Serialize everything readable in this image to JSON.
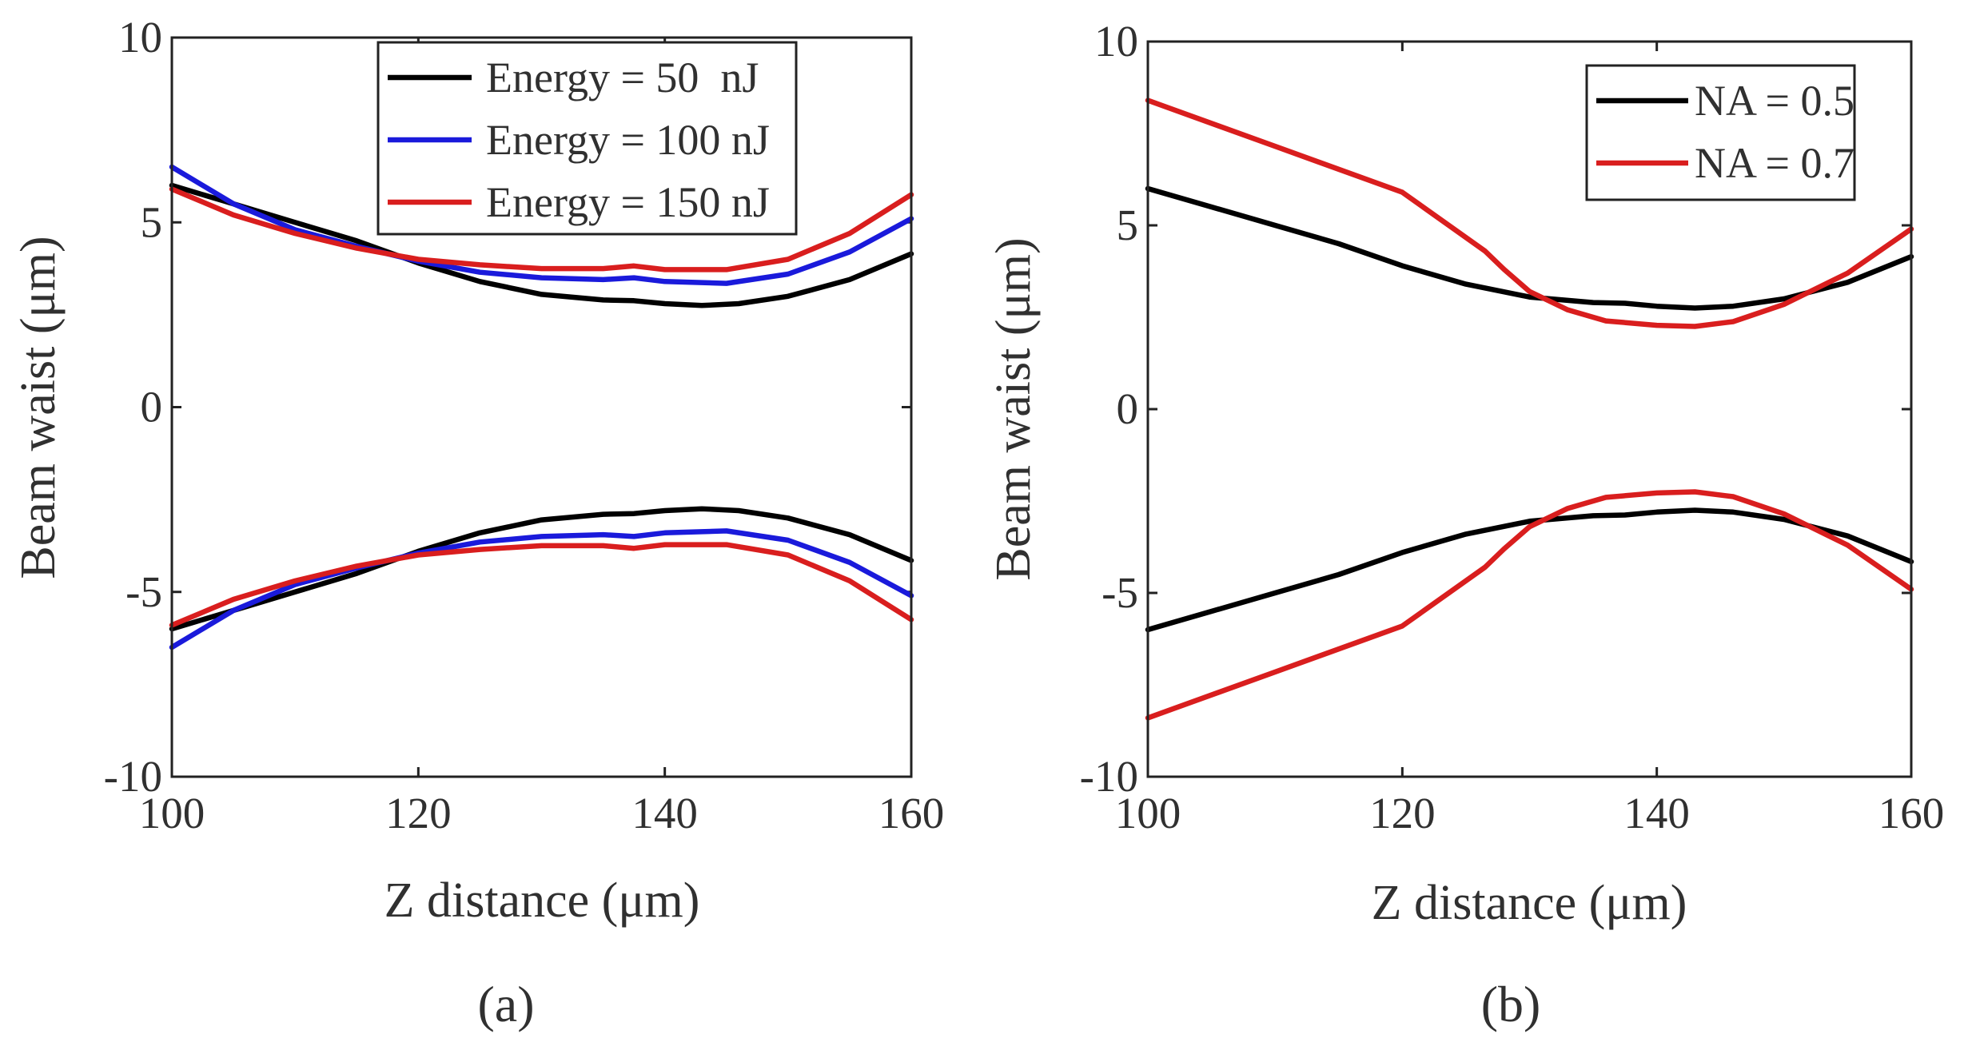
{
  "chart_data": [
    {
      "type": "line",
      "panel_label": "(a)",
      "xlabel": "Z distance (μm)",
      "ylabel": "Beam waist (μm)",
      "xlim": [
        100,
        160
      ],
      "ylim": [
        -10,
        10
      ],
      "xticks": [
        100,
        120,
        140,
        160
      ],
      "yticks": [
        -10,
        -5,
        0,
        5,
        10
      ],
      "legend_position": "top-right",
      "series": [
        {
          "name": "Energy = 50  nJ",
          "color": "#000000",
          "x": [
            100,
            105,
            110,
            115,
            120,
            125,
            130,
            135,
            137.5,
            140,
            143,
            146,
            150,
            155,
            160
          ],
          "upper": [
            6.0,
            5.5,
            5.0,
            4.5,
            3.9,
            3.4,
            3.05,
            2.9,
            2.88,
            2.8,
            2.75,
            2.8,
            3.0,
            3.45,
            4.15
          ],
          "lower": [
            -6.0,
            -5.5,
            -5.0,
            -4.5,
            -3.9,
            -3.4,
            -3.05,
            -2.9,
            -2.88,
            -2.8,
            -2.75,
            -2.8,
            -3.0,
            -3.45,
            -4.15
          ]
        },
        {
          "name": "Energy = 100 nJ",
          "color": "#1a1adb",
          "x": [
            100,
            105,
            110,
            115,
            120,
            125,
            130,
            135,
            137.5,
            140,
            145,
            150,
            155,
            160
          ],
          "upper": [
            6.5,
            5.5,
            4.8,
            4.35,
            3.95,
            3.65,
            3.5,
            3.45,
            3.5,
            3.4,
            3.35,
            3.6,
            4.2,
            5.1
          ],
          "lower": [
            -6.5,
            -5.5,
            -4.8,
            -4.35,
            -3.95,
            -3.65,
            -3.5,
            -3.45,
            -3.5,
            -3.4,
            -3.35,
            -3.6,
            -4.2,
            -5.1
          ]
        },
        {
          "name": "Energy = 150 nJ",
          "color": "#d91e1e",
          "x": [
            100,
            105,
            110,
            115,
            120,
            125,
            130,
            135,
            137.5,
            140,
            145,
            150,
            155,
            160
          ],
          "upper": [
            5.9,
            5.2,
            4.7,
            4.3,
            4.0,
            3.85,
            3.75,
            3.75,
            3.82,
            3.72,
            3.72,
            4.0,
            4.7,
            5.75
          ],
          "lower": [
            -5.9,
            -5.2,
            -4.7,
            -4.3,
            -4.0,
            -3.85,
            -3.75,
            -3.75,
            -3.82,
            -3.72,
            -3.72,
            -4.0,
            -4.7,
            -5.75
          ]
        }
      ]
    },
    {
      "type": "line",
      "panel_label": "(b)",
      "xlabel": "Z distance (μm)",
      "ylabel": "Beam waist (μm)",
      "xlim": [
        100,
        160
      ],
      "ylim": [
        -10,
        10
      ],
      "xticks": [
        100,
        120,
        140,
        160
      ],
      "yticks": [
        -10,
        -5,
        0,
        5,
        10
      ],
      "legend_position": "top-right",
      "series": [
        {
          "name": "NA = 0.5",
          "color": "#000000",
          "x": [
            100,
            105,
            110,
            115,
            120,
            125,
            130,
            135,
            137.5,
            140,
            143,
            146,
            150,
            155,
            160
          ],
          "upper": [
            6.0,
            5.5,
            5.0,
            4.5,
            3.9,
            3.4,
            3.05,
            2.9,
            2.88,
            2.8,
            2.75,
            2.8,
            3.0,
            3.45,
            4.15
          ],
          "lower": [
            -6.0,
            -5.5,
            -5.0,
            -4.5,
            -3.9,
            -3.4,
            -3.05,
            -2.9,
            -2.88,
            -2.8,
            -2.75,
            -2.8,
            -3.0,
            -3.45,
            -4.15
          ]
        },
        {
          "name": "NA = 0.7",
          "color": "#d91e1e",
          "x": [
            100,
            110,
            120,
            126.5,
            128,
            130,
            133,
            136,
            140,
            143,
            146,
            150,
            155,
            160
          ],
          "upper": [
            8.4,
            7.15,
            5.9,
            4.3,
            3.8,
            3.2,
            2.7,
            2.4,
            2.28,
            2.25,
            2.38,
            2.85,
            3.7,
            4.9
          ],
          "lower": [
            -8.4,
            -7.15,
            -5.9,
            -4.3,
            -3.8,
            -3.2,
            -2.7,
            -2.4,
            -2.28,
            -2.25,
            -2.38,
            -2.85,
            -3.7,
            -4.9
          ]
        }
      ]
    }
  ]
}
